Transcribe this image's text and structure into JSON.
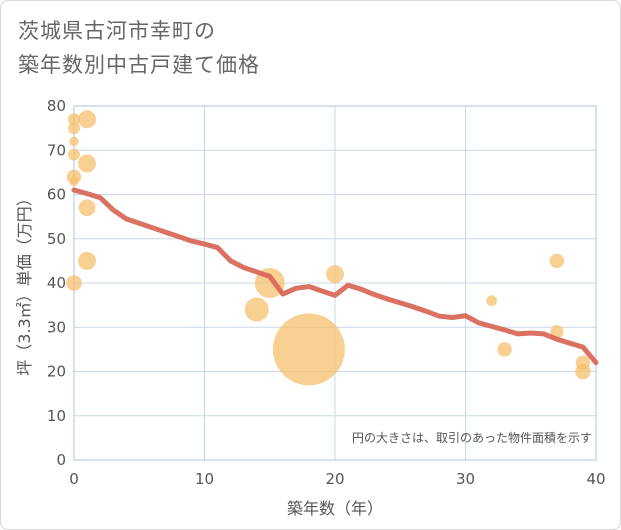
{
  "title_line1": "茨城県古河市幸町の",
  "title_line2": "築年数別中古戸建て価格",
  "colors": {
    "bubble": "#f5c06e",
    "trend_line": "#d9695a",
    "grid": "#c9d9ea",
    "plot_border": "#b0c4dc"
  },
  "chart_data": {
    "type": "scatter",
    "title": "茨城県古河市幸町の築年数別中古戸建て価格",
    "xlabel": "築年数（年）",
    "ylabel": "坪（3.3㎡）単価（万円）",
    "xlim": [
      0,
      40
    ],
    "ylim": [
      0,
      80
    ],
    "x_ticks": [
      0,
      10,
      20,
      30,
      40
    ],
    "y_ticks": [
      0,
      10,
      20,
      30,
      40,
      50,
      60,
      70,
      80
    ],
    "note": "円の大きさは、取引のあった物件面積を示す",
    "points": [
      {
        "x": 0,
        "y": 77,
        "size": 1.0
      },
      {
        "x": 0,
        "y": 75,
        "size": 1.0
      },
      {
        "x": 0,
        "y": 72,
        "size": 0.8
      },
      {
        "x": 0,
        "y": 69,
        "size": 1.0
      },
      {
        "x": 0,
        "y": 64,
        "size": 1.2
      },
      {
        "x": 0,
        "y": 63,
        "size": 0.8
      },
      {
        "x": 0,
        "y": 40,
        "size": 1.3
      },
      {
        "x": 1,
        "y": 77,
        "size": 1.5
      },
      {
        "x": 1,
        "y": 67,
        "size": 1.5
      },
      {
        "x": 1,
        "y": 57,
        "size": 1.4
      },
      {
        "x": 1,
        "y": 45,
        "size": 1.5
      },
      {
        "x": 14,
        "y": 34,
        "size": 2.0
      },
      {
        "x": 15,
        "y": 40,
        "size": 2.5
      },
      {
        "x": 18,
        "y": 25,
        "size": 6.0
      },
      {
        "x": 20,
        "y": 42,
        "size": 1.5
      },
      {
        "x": 32,
        "y": 36,
        "size": 0.9
      },
      {
        "x": 33,
        "y": 25,
        "size": 1.2
      },
      {
        "x": 37,
        "y": 45,
        "size": 1.2
      },
      {
        "x": 37,
        "y": 29,
        "size": 1.1
      },
      {
        "x": 39,
        "y": 22,
        "size": 1.2
      },
      {
        "x": 39,
        "y": 20,
        "size": 1.3
      }
    ],
    "trend": {
      "x": [
        0,
        1,
        2,
        3,
        4,
        5,
        6,
        7,
        8,
        9,
        10,
        11,
        12,
        13,
        14,
        15,
        16,
        17,
        18,
        19,
        20,
        21,
        22,
        23,
        24,
        25,
        26,
        27,
        28,
        29,
        30,
        31,
        32,
        33,
        34,
        35,
        36,
        37,
        38,
        39,
        40
      ],
      "y": [
        61,
        60.2,
        59.3,
        56.5,
        54.5,
        53.5,
        52.5,
        51.5,
        50.5,
        49.5,
        48.8,
        48,
        45,
        43.5,
        42.5,
        41.5,
        37.5,
        38.8,
        39.2,
        38.2,
        37.2,
        39.5,
        38.6,
        37.4,
        36.4,
        35.5,
        34.6,
        33.6,
        32.5,
        32.2,
        32.6,
        31,
        30.2,
        29.4,
        28.5,
        28.7,
        28.5,
        27.3,
        26.4,
        25.5,
        22
      ]
    }
  }
}
